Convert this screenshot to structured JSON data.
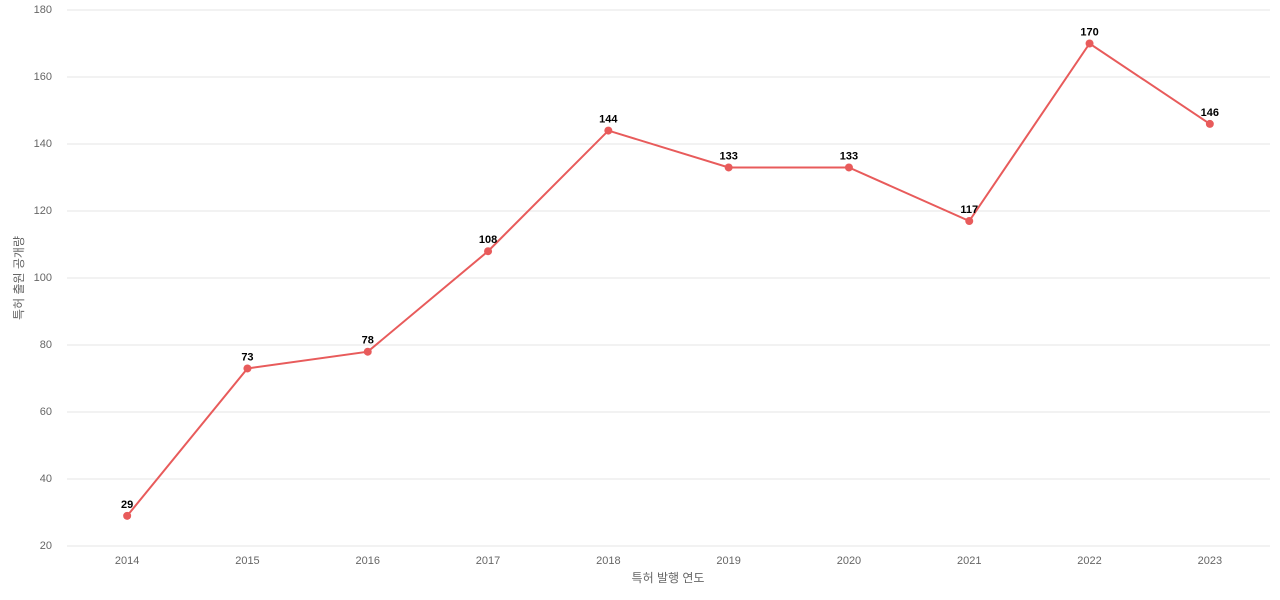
{
  "chart_data": {
    "type": "line",
    "x_label": "특허 발행 연도",
    "y_label": "특허 출원 공개량",
    "categories": [
      "2014",
      "2015",
      "2016",
      "2017",
      "2018",
      "2019",
      "2020",
      "2021",
      "2022",
      "2023"
    ],
    "values": [
      29,
      73,
      78,
      108,
      144,
      133,
      133,
      117,
      170,
      146
    ],
    "color": "#e85b5b",
    "ylim": [
      20,
      180
    ],
    "yticks": [
      20,
      40,
      60,
      80,
      100,
      120,
      140,
      160,
      180
    ],
    "grid": true
  }
}
